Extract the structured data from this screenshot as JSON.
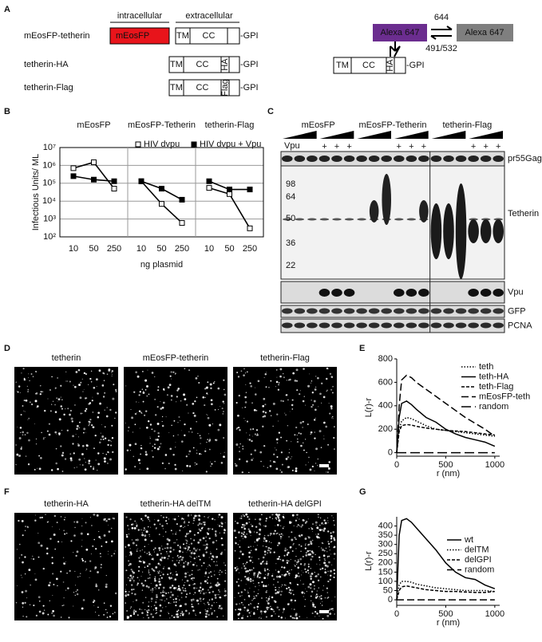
{
  "panel_labels": [
    "A",
    "B",
    "C",
    "D",
    "E",
    "F",
    "G"
  ],
  "diagram": {
    "intracellular": "intracellular",
    "extracellular": "extracellular",
    "constructs": [
      {
        "name": "mEosFP-tetherin",
        "fp": "mEosFP",
        "domains": [
          "TM",
          "CC"
        ],
        "anchor": "-GPI"
      },
      {
        "name": "tetherin-HA",
        "domains": [
          "TM",
          "CC",
          "HA"
        ],
        "anchor": "-GPI"
      },
      {
        "name": "tetherin-Flag",
        "domains": [
          "TM",
          "CC",
          "Flag"
        ],
        "anchor": "-GPI"
      }
    ],
    "dye": {
      "bright": "Alexa 647",
      "dark": "Alexa 647",
      "forward": "644",
      "back": "491/532",
      "construct": {
        "domains": [
          "TM",
          "CC",
          "HA"
        ],
        "anchor": "-GPI"
      }
    }
  },
  "blot": {
    "groups": [
      "mEosFP",
      "mEosFP-Tetherin",
      "tetherin-Flag"
    ],
    "treatment": "Vpu",
    "plus": [
      "+",
      "+",
      "+",
      "+",
      "+",
      "+",
      "+",
      "+",
      "+"
    ],
    "mw": [
      98,
      64,
      50,
      36,
      22
    ],
    "bands": [
      "pr55Gag",
      "Tetherin",
      "Vpu",
      "GFP",
      "PCNA"
    ]
  },
  "images": {
    "D": [
      "tetherin",
      "mEosFP-tetherin",
      "tetherin-Flag"
    ],
    "F": [
      "tetherin-HA",
      "tetherin-HA delTM",
      "tetherin-HA delGPI"
    ]
  },
  "chart_data": [
    {
      "type": "line",
      "ylabel": "Infectious Units/ ML",
      "xlabel": "ng plasmid",
      "log_y": true,
      "grid": true,
      "legend": "top",
      "ylim": [
        100,
        10000000
      ],
      "yticks": [
        {
          "value": 100,
          "label": "10²"
        },
        {
          "value": 1000,
          "label": "10³"
        },
        {
          "value": 10000,
          "label": "10⁴"
        },
        {
          "value": 100000,
          "label": "10⁵"
        },
        {
          "value": 1000000,
          "label": "10⁶"
        },
        {
          "value": 10000000,
          "label": "10⁷"
        }
      ],
      "categories": [
        "10",
        "50",
        "250"
      ],
      "panels": [
        "mEosFP",
        "mEosFP-Tetherin",
        "tetherin-Flag"
      ],
      "series": [
        {
          "name": "HIV dvpu",
          "marker": "open-square",
          "color": "#000000",
          "values": [
            [
              700000,
              1500000,
              50000
            ],
            [
              130000,
              7000,
              600
            ],
            [
              55000,
              25000,
              300
            ]
          ]
        },
        {
          "name": "HIV dvpu + Vpu",
          "marker": "filled-square",
          "color": "#000000",
          "values": [
            [
              250000,
              160000,
              130000
            ],
            [
              130000,
              50000,
              12000
            ],
            [
              130000,
              45000,
              45000
            ]
          ]
        }
      ]
    },
    {
      "type": "line",
      "xlabel": "r (nm)",
      "ylabel": "L(r)-r",
      "legend": "upper right",
      "xlim": [
        0,
        1050
      ],
      "xticks": [
        0,
        500,
        1000
      ],
      "ylim": [
        -30,
        800
      ],
      "yticks": [
        0,
        200,
        400,
        600,
        800
      ],
      "x": [
        0,
        25,
        50,
        100,
        150,
        200,
        300,
        400,
        500,
        600,
        700,
        800,
        900,
        1000
      ],
      "series": [
        {
          "name": "teth",
          "style": "dotted",
          "color": "#000000",
          "values": [
            0,
            200,
            270,
            300,
            290,
            270,
            230,
            200,
            190,
            180,
            170,
            160,
            150,
            140
          ]
        },
        {
          "name": "teth-HA",
          "style": "solid",
          "color": "#000000",
          "values": [
            0,
            300,
            420,
            440,
            410,
            370,
            300,
            260,
            200,
            160,
            130,
            110,
            90,
            55
          ]
        },
        {
          "name": "teth-Flag",
          "style": "dashed",
          "color": "#000000",
          "values": [
            0,
            180,
            230,
            240,
            235,
            225,
            210,
            200,
            190,
            185,
            180,
            170,
            160,
            150
          ]
        },
        {
          "name": "mEosFP-teth",
          "style": "longdash",
          "color": "#000000",
          "values": [
            0,
            400,
            620,
            660,
            640,
            600,
            540,
            480,
            420,
            360,
            300,
            250,
            200,
            140
          ]
        },
        {
          "name": "random",
          "style": "dashdot",
          "color": "#000000",
          "values": [
            0,
            0,
            0,
            0,
            0,
            0,
            0,
            0,
            0,
            0,
            0,
            0,
            0,
            0
          ]
        }
      ]
    },
    {
      "type": "line",
      "xlabel": "r (nm)",
      "ylabel": "L(r)-r",
      "legend": "upper right",
      "xlim": [
        0,
        1050
      ],
      "xticks": [
        0,
        500,
        1000
      ],
      "ylim": [
        -30,
        450
      ],
      "yticks": [
        0,
        50,
        100,
        150,
        200,
        250,
        300,
        350,
        400
      ],
      "x": [
        0,
        25,
        50,
        100,
        150,
        200,
        300,
        400,
        500,
        600,
        700,
        800,
        900,
        1000
      ],
      "series": [
        {
          "name": "wt",
          "style": "solid",
          "color": "#000000",
          "values": [
            0,
            350,
            430,
            440,
            420,
            390,
            330,
            270,
            200,
            150,
            120,
            110,
            80,
            60
          ]
        },
        {
          "name": "delTM",
          "style": "dotted",
          "color": "#000000",
          "values": [
            0,
            80,
            100,
            100,
            95,
            85,
            75,
            65,
            60,
            55,
            50,
            50,
            50,
            45
          ]
        },
        {
          "name": "delGPI",
          "style": "dashed",
          "color": "#000000",
          "values": [
            0,
            50,
            70,
            75,
            70,
            65,
            55,
            50,
            45,
            45,
            42,
            40,
            40,
            45
          ]
        },
        {
          "name": "random",
          "style": "longdash",
          "color": "#000000",
          "values": [
            0,
            0,
            0,
            0,
            0,
            0,
            0,
            0,
            0,
            0,
            0,
            0,
            0,
            0
          ]
        }
      ]
    }
  ]
}
